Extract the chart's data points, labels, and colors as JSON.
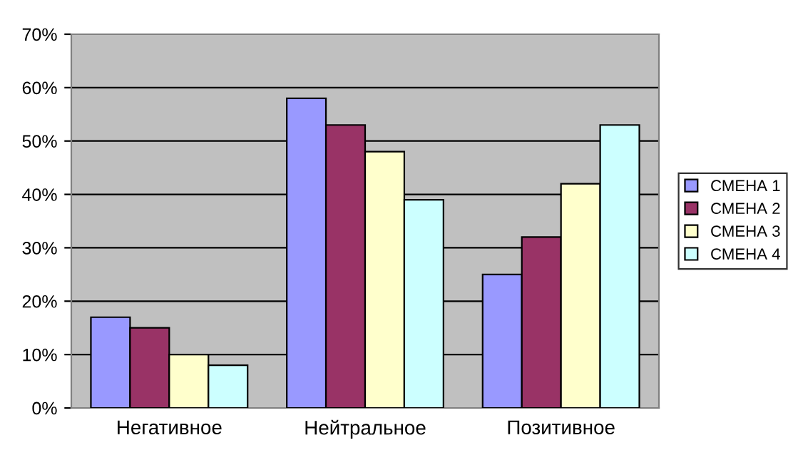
{
  "chart_data": {
    "type": "bar",
    "categories": [
      "Негативное",
      "Нейтральное",
      "Позитивное"
    ],
    "series": [
      {
        "name": "СМЕНА 1",
        "color": "#9999ff",
        "values": [
          17,
          58,
          25
        ]
      },
      {
        "name": "СМЕНА 2",
        "color": "#993366",
        "values": [
          15,
          53,
          32
        ]
      },
      {
        "name": "СМЕНА 3",
        "color": "#ffffcc",
        "values": [
          10,
          48,
          42
        ]
      },
      {
        "name": "СМЕНА 4",
        "color": "#ccffff",
        "values": [
          8,
          39,
          53
        ]
      }
    ],
    "ylim": [
      0,
      70
    ],
    "yticks": [
      {
        "value": 0,
        "label": "0%"
      },
      {
        "value": 10,
        "label": "10%"
      },
      {
        "value": 20,
        "label": "20%"
      },
      {
        "value": 30,
        "label": "30%"
      },
      {
        "value": 40,
        "label": "40%"
      },
      {
        "value": 50,
        "label": "50%"
      },
      {
        "value": 60,
        "label": "60%"
      },
      {
        "value": 70,
        "label": "70%"
      }
    ],
    "grid": "y",
    "legend": "right"
  }
}
